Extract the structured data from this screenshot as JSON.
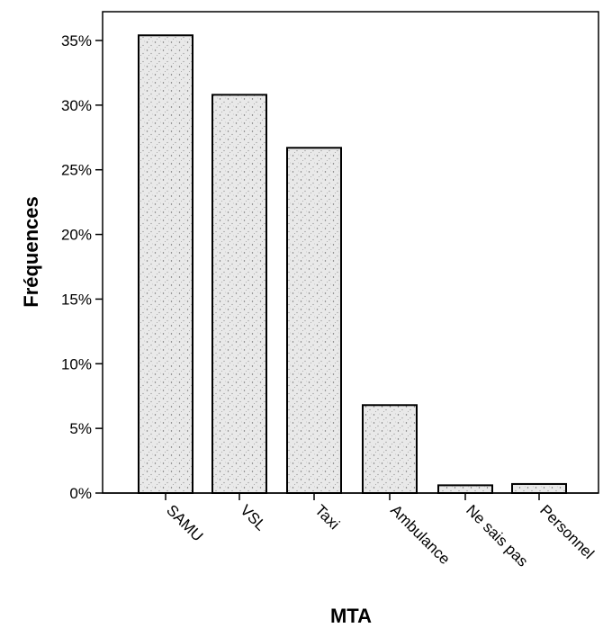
{
  "chart_data": {
    "type": "bar",
    "categories": [
      "SAMU",
      "VSL",
      "Taxi",
      "Ambulance",
      "Ne sais pas",
      "Personnel"
    ],
    "values": [
      35.4,
      30.8,
      26.7,
      6.8,
      0.6,
      0.7
    ],
    "ylabel": "Fréquences",
    "xlabel": "MTA",
    "ylim": [
      0,
      37.5
    ],
    "yticks": [
      0,
      5,
      10,
      15,
      20,
      25,
      30,
      35
    ],
    "ytick_labels": [
      "0%",
      "5%",
      "10%",
      "15%",
      "20%",
      "25%",
      "30%",
      "35%"
    ],
    "grid": false,
    "legend": "none",
    "colors": {
      "bar_fill": "#e6e6e6",
      "bar_stroke": "#000000",
      "axis": "#000000"
    }
  }
}
